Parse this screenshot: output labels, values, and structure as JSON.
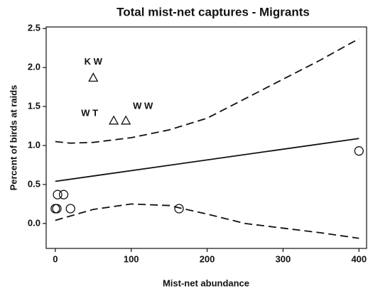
{
  "chart_data": {
    "type": "scatter",
    "title": "Total mist-net captures - Migrants",
    "xlabel": "Mist-net abundance",
    "ylabel": "Percent of birds at raids",
    "xlim": [
      -12,
      410
    ],
    "ylim": [
      -0.32,
      2.52
    ],
    "xticks": [
      0,
      100,
      200,
      300,
      400
    ],
    "yticks": [
      {
        "value": 0,
        "label": "0.0"
      },
      0.5,
      {
        "value": 1,
        "label": "1.0"
      },
      1.5,
      {
        "value": 2,
        "label": "2.0"
      },
      2.5
    ],
    "series": [
      {
        "marker": "circle",
        "x": [
          0,
          2,
          3,
          11,
          20,
          163,
          400
        ],
        "y": [
          0.19,
          0.19,
          0.37,
          0.37,
          0.19,
          0.19,
          0.93
        ]
      },
      {
        "marker": "triangle",
        "x": [
          50,
          77,
          93
        ],
        "y": [
          1.87,
          1.32,
          1.32
        ],
        "labels": [
          "K W",
          "W T",
          "W W"
        ]
      }
    ],
    "lines": [
      {
        "dash": false,
        "x": [
          0,
          400
        ],
        "y": [
          0.54,
          1.09
        ]
      },
      {
        "dash": true,
        "x": [
          0,
          20,
          50,
          100,
          150,
          200,
          250,
          300,
          350,
          400
        ],
        "y": [
          1.05,
          1.03,
          1.04,
          1.1,
          1.2,
          1.35,
          1.6,
          1.85,
          2.1,
          2.37
        ]
      },
      {
        "dash": true,
        "x": [
          0,
          50,
          100,
          150,
          200,
          250,
          300,
          350,
          400
        ],
        "y": [
          0.04,
          0.18,
          0.25,
          0.23,
          0.12,
          0.0,
          -0.06,
          -0.12,
          -0.19
        ]
      }
    ]
  }
}
